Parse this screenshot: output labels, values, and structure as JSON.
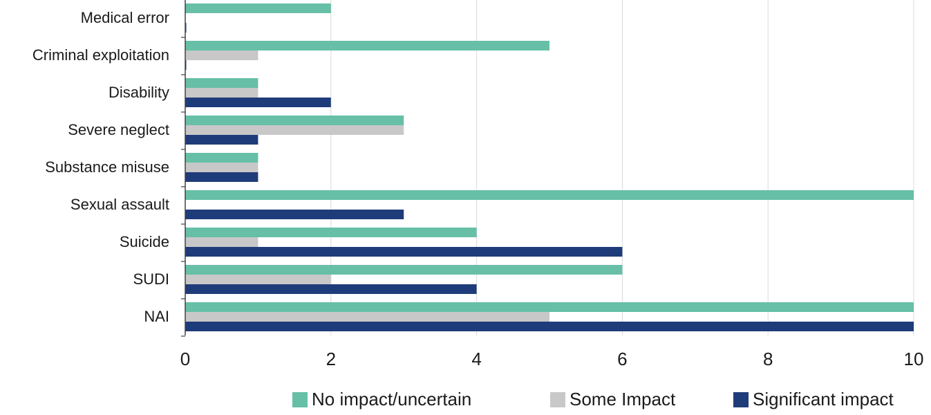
{
  "chart_data": {
    "type": "bar",
    "orientation": "horizontal",
    "categories": [
      "Medical error",
      "Criminal exploitation",
      "Disability",
      "Severe neglect",
      "Substance misuse",
      "Sexual assault",
      "Suicide",
      "SUDI",
      "NAI"
    ],
    "series": [
      {
        "name": "No impact/uncertain",
        "color": "#66bfa6",
        "values": [
          2,
          5,
          1,
          3,
          1,
          10,
          4,
          6,
          10
        ]
      },
      {
        "name": "Some Impact",
        "color": "#c8c8c8",
        "values": [
          0,
          1,
          1,
          3,
          1,
          0,
          1,
          2,
          5
        ]
      },
      {
        "name": "Significant impact",
        "color": "#1f3c7a",
        "values": [
          0,
          0,
          2,
          1,
          1,
          3,
          6,
          4,
          10
        ]
      }
    ],
    "title": "",
    "xlabel": "",
    "ylabel": "",
    "xlim": [
      0,
      10
    ],
    "xticks": [
      "0",
      "2",
      "4",
      "6",
      "8",
      "10"
    ],
    "grid": "vertical",
    "legend": "bottom-right"
  }
}
